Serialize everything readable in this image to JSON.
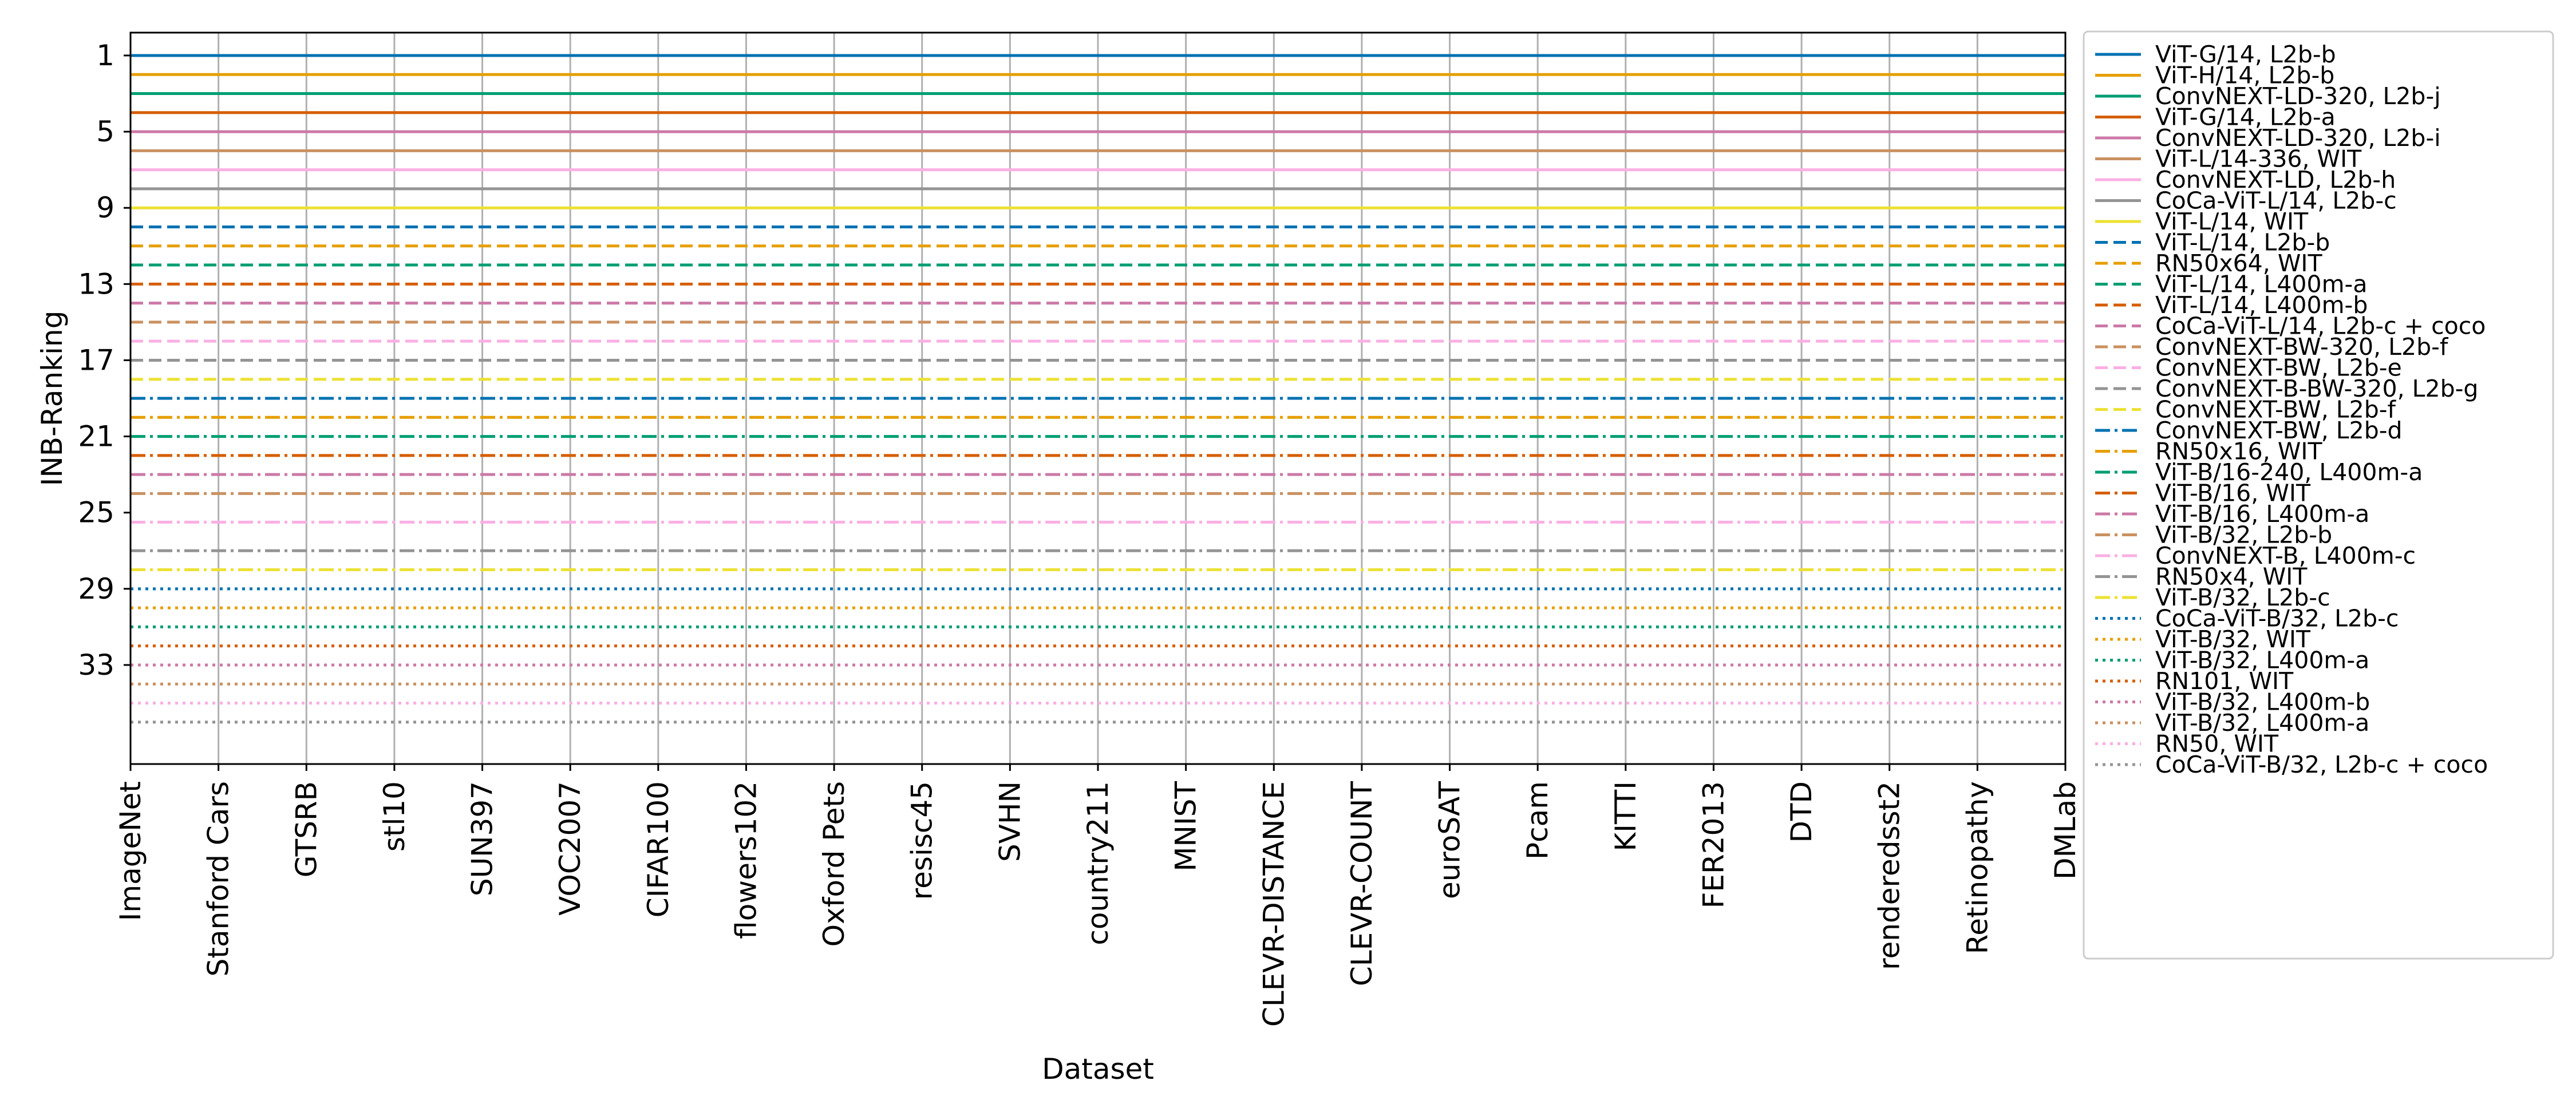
{
  "chart_data": {
    "type": "line",
    "title": "",
    "xlabel": "Dataset",
    "ylabel": "INB-Ranking",
    "categories": [
      "ImageNet",
      "Stanford Cars",
      "GTSRB",
      "stl10",
      "SUN397",
      "VOC2007",
      "CIFAR100",
      "flowers102",
      "Oxford Pets",
      "resisc45",
      "SVHN",
      "country211",
      "MNIST",
      "CLEVR-DISTANCE",
      "CLEVR-COUNT",
      "euroSAT",
      "Pcam",
      "KITTI",
      "FER2013",
      "DTD",
      "renderedsst2",
      "Retinopathy",
      "DMLab"
    ],
    "ylim": [
      38.2,
      -0.2
    ],
    "y_inverted": true,
    "yticks": [
      1,
      5,
      9,
      13,
      17,
      21,
      25,
      29,
      33
    ],
    "grid": "x",
    "legend_position": "outside right",
    "series": [
      {
        "name": "ViT-G/14, L2b-b",
        "color": "#0072B2",
        "linestyle": "solid",
        "values": [
          1,
          1,
          1,
          1,
          1,
          1,
          1,
          1,
          1,
          1,
          1,
          1,
          1,
          1,
          1,
          1,
          1,
          1,
          1,
          1,
          1,
          1,
          1
        ]
      },
      {
        "name": "ViT-H/14, L2b-b",
        "color": "#E69F00",
        "linestyle": "solid",
        "values": [
          2,
          2,
          2,
          2,
          2,
          2,
          2,
          2,
          2,
          2,
          2,
          2,
          2,
          2,
          2,
          2,
          2,
          2,
          2,
          2,
          2,
          2,
          2
        ]
      },
      {
        "name": "ConvNEXT-LD-320, L2b-j",
        "color": "#009E73",
        "linestyle": "solid",
        "values": [
          3,
          3,
          3,
          3,
          3,
          3,
          3,
          3,
          3,
          3,
          3,
          3,
          3,
          3,
          3,
          3,
          3,
          3,
          3,
          3,
          3,
          3,
          3
        ]
      },
      {
        "name": "ViT-G/14, L2b-a",
        "color": "#D55E00",
        "linestyle": "solid",
        "values": [
          4,
          4,
          4,
          4,
          4,
          4,
          4,
          4,
          4,
          4,
          4,
          4,
          4,
          4,
          4,
          4,
          4,
          4,
          4,
          4,
          4,
          4,
          4
        ]
      },
      {
        "name": "ConvNEXT-LD-320, L2b-i",
        "color": "#CC79A7",
        "linestyle": "solid",
        "values": [
          5,
          5,
          5,
          5,
          5,
          5,
          5,
          5,
          5,
          5,
          5,
          5,
          5,
          5,
          5,
          5,
          5,
          5,
          5,
          5,
          5,
          5,
          5
        ]
      },
      {
        "name": "ViT-L/14-336, WIT",
        "color": "#CA9161",
        "linestyle": "solid",
        "values": [
          6,
          6,
          6,
          6,
          6,
          6,
          6,
          6,
          6,
          6,
          6,
          6,
          6,
          6,
          6,
          6,
          6,
          6,
          6,
          6,
          6,
          6,
          6
        ]
      },
      {
        "name": "ConvNEXT-LD, L2b-h",
        "color": "#FBAFE4",
        "linestyle": "solid",
        "values": [
          7,
          7,
          7,
          7,
          7,
          7,
          7,
          7,
          7,
          7,
          7,
          7,
          7,
          7,
          7,
          7,
          7,
          7,
          7,
          7,
          7,
          7,
          7
        ]
      },
      {
        "name": "CoCa-ViT-L/14, L2b-c",
        "color": "#949494",
        "linestyle": "solid",
        "values": [
          8,
          8,
          8,
          8,
          8,
          8,
          8,
          8,
          8,
          8,
          8,
          8,
          8,
          8,
          8,
          8,
          8,
          8,
          8,
          8,
          8,
          8,
          8
        ]
      },
      {
        "name": "ViT-L/14, WIT",
        "color": "#ECE133",
        "linestyle": "solid",
        "values": [
          9,
          9,
          9,
          9,
          9,
          9,
          9,
          9,
          9,
          9,
          9,
          9,
          9,
          9,
          9,
          9,
          9,
          9,
          9,
          9,
          9,
          9,
          9
        ]
      },
      {
        "name": "ViT-L/14, L2b-b",
        "color": "#0072B2",
        "linestyle": "dashed",
        "values": [
          10,
          10,
          10,
          10,
          10,
          10,
          10,
          10,
          10,
          10,
          10,
          10,
          10,
          10,
          10,
          10,
          10,
          10,
          10,
          10,
          10,
          10,
          10
        ]
      },
      {
        "name": "RN50x64, WIT",
        "color": "#E69F00",
        "linestyle": "dashed",
        "values": [
          11,
          11,
          11,
          11,
          11,
          11,
          11,
          11,
          11,
          11,
          11,
          11,
          11,
          11,
          11,
          11,
          11,
          11,
          11,
          11,
          11,
          11,
          11
        ]
      },
      {
        "name": "ViT-L/14, L400m-a",
        "color": "#009E73",
        "linestyle": "dashed",
        "values": [
          12,
          12,
          12,
          12,
          12,
          12,
          12,
          12,
          12,
          12,
          12,
          12,
          12,
          12,
          12,
          12,
          12,
          12,
          12,
          12,
          12,
          12,
          12
        ]
      },
      {
        "name": "ViT-L/14, L400m-b",
        "color": "#D55E00",
        "linestyle": "dashed",
        "values": [
          13,
          13,
          13,
          13,
          13,
          13,
          13,
          13,
          13,
          13,
          13,
          13,
          13,
          13,
          13,
          13,
          13,
          13,
          13,
          13,
          13,
          13,
          13
        ]
      },
      {
        "name": "CoCa-ViT-L/14, L2b-c + coco",
        "color": "#CC79A7",
        "linestyle": "dashed",
        "values": [
          14,
          14,
          14,
          14,
          14,
          14,
          14,
          14,
          14,
          14,
          14,
          14,
          14,
          14,
          14,
          14,
          14,
          14,
          14,
          14,
          14,
          14,
          14
        ]
      },
      {
        "name": "ConvNEXT-BW-320, L2b-f",
        "color": "#CA9161",
        "linestyle": "dashed",
        "values": [
          15,
          15,
          15,
          15,
          15,
          15,
          15,
          15,
          15,
          15,
          15,
          15,
          15,
          15,
          15,
          15,
          15,
          15,
          15,
          15,
          15,
          15,
          15
        ]
      },
      {
        "name": "ConvNEXT-BW, L2b-e",
        "color": "#FBAFE4",
        "linestyle": "dashed",
        "values": [
          16,
          16,
          16,
          16,
          16,
          16,
          16,
          16,
          16,
          16,
          16,
          16,
          16,
          16,
          16,
          16,
          16,
          16,
          16,
          16,
          16,
          16,
          16
        ]
      },
      {
        "name": "ConvNEXT-B-BW-320, L2b-g",
        "color": "#949494",
        "linestyle": "dashed",
        "values": [
          17,
          17,
          17,
          17,
          17,
          17,
          17,
          17,
          17,
          17,
          17,
          17,
          17,
          17,
          17,
          17,
          17,
          17,
          17,
          17,
          17,
          17,
          17
        ]
      },
      {
        "name": "ConvNEXT-BW, L2b-f",
        "color": "#ECE133",
        "linestyle": "dashed",
        "values": [
          18,
          18,
          18,
          18,
          18,
          18,
          18,
          18,
          18,
          18,
          18,
          18,
          18,
          18,
          18,
          18,
          18,
          18,
          18,
          18,
          18,
          18,
          18
        ]
      },
      {
        "name": "ConvNEXT-BW, L2b-d",
        "color": "#0072B2",
        "linestyle": "dashdot",
        "values": [
          19,
          19,
          19,
          19,
          19,
          19,
          19,
          19,
          19,
          19,
          19,
          19,
          19,
          19,
          19,
          19,
          19,
          19,
          19,
          19,
          19,
          19,
          19
        ]
      },
      {
        "name": "RN50x16, WIT",
        "color": "#E69F00",
        "linestyle": "dashdot",
        "values": [
          20,
          20,
          20,
          20,
          20,
          20,
          20,
          20,
          20,
          20,
          20,
          20,
          20,
          20,
          20,
          20,
          20,
          20,
          20,
          20,
          20,
          20,
          20
        ]
      },
      {
        "name": "ViT-B/16-240, L400m-a",
        "color": "#009E73",
        "linestyle": "dashdot",
        "values": [
          21,
          21,
          21,
          21,
          21,
          21,
          21,
          21,
          21,
          21,
          21,
          21,
          21,
          21,
          21,
          21,
          21,
          21,
          21,
          21,
          21,
          21,
          21
        ]
      },
      {
        "name": "ViT-B/16, WIT",
        "color": "#D55E00",
        "linestyle": "dashdot",
        "values": [
          22,
          22,
          22,
          22,
          22,
          22,
          22,
          22,
          22,
          22,
          22,
          22,
          22,
          22,
          22,
          22,
          22,
          22,
          22,
          22,
          22,
          22,
          22
        ]
      },
      {
        "name": "ViT-B/16, L400m-a",
        "color": "#CC79A7",
        "linestyle": "dashdot",
        "values": [
          23,
          23,
          23,
          23,
          23,
          23,
          23,
          23,
          23,
          23,
          23,
          23,
          23,
          23,
          23,
          23,
          23,
          23,
          23,
          23,
          23,
          23,
          23
        ]
      },
      {
        "name": "ViT-B/32, L2b-b",
        "color": "#CA9161",
        "linestyle": "dashdot",
        "values": [
          24,
          24,
          24,
          24,
          24,
          24,
          24,
          24,
          24,
          24,
          24,
          24,
          24,
          24,
          24,
          24,
          24,
          24,
          24,
          24,
          24,
          24,
          24
        ]
      },
      {
        "name": "ConvNEXT-B, L400m-c",
        "color": "#FBAFE4",
        "linestyle": "dashdot",
        "values": [
          25.5,
          25.5,
          25.5,
          25.5,
          25.5,
          25.5,
          25.5,
          25.5,
          25.5,
          25.5,
          25.5,
          25.5,
          25.5,
          25.5,
          25.5,
          25.5,
          25.5,
          25.5,
          25.5,
          25.5,
          25.5,
          25.5,
          25.5
        ]
      },
      {
        "name": "RN50x4, WIT",
        "color": "#949494",
        "linestyle": "dashdot",
        "values": [
          27,
          27,
          27,
          27,
          27,
          27,
          27,
          27,
          27,
          27,
          27,
          27,
          27,
          27,
          27,
          27,
          27,
          27,
          27,
          27,
          27,
          27,
          27
        ]
      },
      {
        "name": "ViT-B/32, L2b-c",
        "color": "#ECE133",
        "linestyle": "dashdot",
        "values": [
          28,
          28,
          28,
          28,
          28,
          28,
          28,
          28,
          28,
          28,
          28,
          28,
          28,
          28,
          28,
          28,
          28,
          28,
          28,
          28,
          28,
          28,
          28
        ]
      },
      {
        "name": "CoCa-ViT-B/32, L2b-c",
        "color": "#0072B2",
        "linestyle": "dotted",
        "values": [
          29,
          29,
          29,
          29,
          29,
          29,
          29,
          29,
          29,
          29,
          29,
          29,
          29,
          29,
          29,
          29,
          29,
          29,
          29,
          29,
          29,
          29,
          29
        ]
      },
      {
        "name": "ViT-B/32, WIT",
        "color": "#E69F00",
        "linestyle": "dotted",
        "values": [
          30,
          30,
          30,
          30,
          30,
          30,
          30,
          30,
          30,
          30,
          30,
          30,
          30,
          30,
          30,
          30,
          30,
          30,
          30,
          30,
          30,
          30,
          30
        ]
      },
      {
        "name": "ViT-B/32, L400m-a",
        "color": "#009E73",
        "linestyle": "dotted",
        "values": [
          31,
          31,
          31,
          31,
          31,
          31,
          31,
          31,
          31,
          31,
          31,
          31,
          31,
          31,
          31,
          31,
          31,
          31,
          31,
          31,
          31,
          31,
          31
        ]
      },
      {
        "name": "RN101, WIT",
        "color": "#D55E00",
        "linestyle": "dotted",
        "values": [
          32,
          32,
          32,
          32,
          32,
          32,
          32,
          32,
          32,
          32,
          32,
          32,
          32,
          32,
          32,
          32,
          32,
          32,
          32,
          32,
          32,
          32,
          32
        ]
      },
      {
        "name": "ViT-B/32, L400m-b",
        "color": "#CC79A7",
        "linestyle": "dotted",
        "values": [
          33,
          33,
          33,
          33,
          33,
          33,
          33,
          33,
          33,
          33,
          33,
          33,
          33,
          33,
          33,
          33,
          33,
          33,
          33,
          33,
          33,
          33,
          33
        ]
      },
      {
        "name": "ViT-B/32, L400m-a",
        "color": "#CA9161",
        "linestyle": "dotted",
        "values": [
          34,
          34,
          34,
          34,
          34,
          34,
          34,
          34,
          34,
          34,
          34,
          34,
          34,
          34,
          34,
          34,
          34,
          34,
          34,
          34,
          34,
          34,
          34
        ]
      },
      {
        "name": "RN50, WIT",
        "color": "#FBAFE4",
        "linestyle": "dotted",
        "values": [
          35,
          35,
          35,
          35,
          35,
          35,
          35,
          35,
          35,
          35,
          35,
          35,
          35,
          35,
          35,
          35,
          35,
          35,
          35,
          35,
          35,
          35,
          35
        ]
      },
      {
        "name": "CoCa-ViT-B/32, L2b-c + coco",
        "color": "#949494",
        "linestyle": "dotted",
        "values": [
          36,
          36,
          36,
          36,
          36,
          36,
          36,
          36,
          36,
          36,
          36,
          36,
          36,
          36,
          36,
          36,
          36,
          36,
          36,
          36,
          36,
          36,
          36
        ]
      }
    ]
  }
}
